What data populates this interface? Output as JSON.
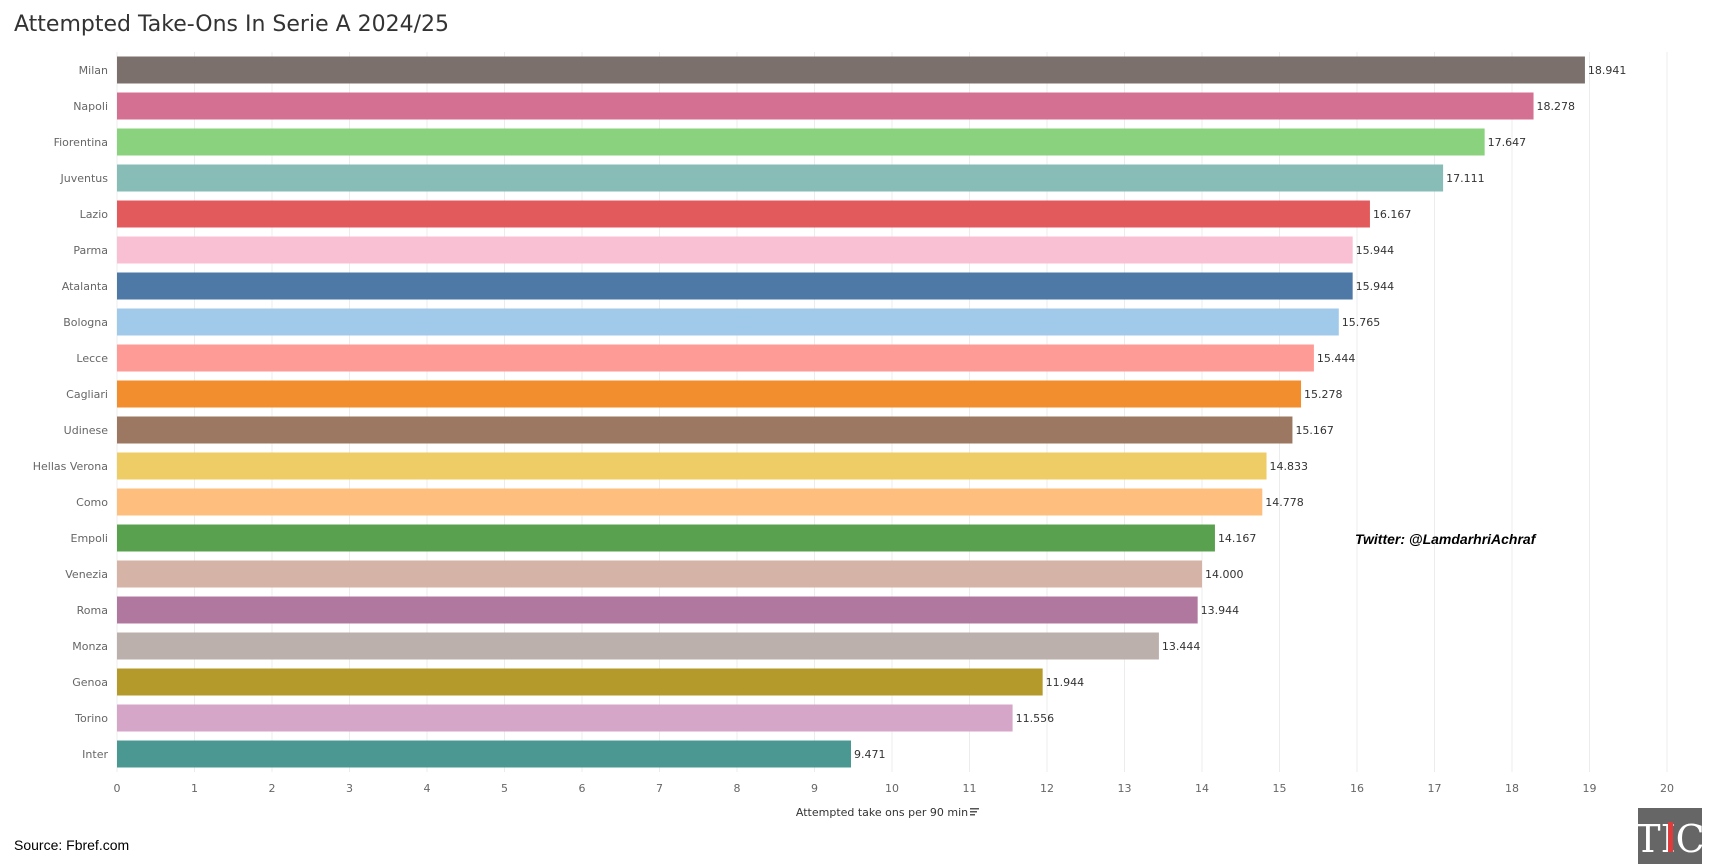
{
  "header": {
    "title": "Attempted Take-Ons In Serie A 2024/25"
  },
  "annotation": {
    "twitter": "Twitter: @LamdarhriAchraf"
  },
  "footer": {
    "source": "Source: Fbref.com",
    "logo_text": "TIC"
  },
  "chart_data": {
    "type": "bar",
    "orientation": "horizontal",
    "title": "Attempted Take-Ons In Serie A 2024/25",
    "xlabel": "Attempted take ons per 90 min",
    "ylabel": "",
    "xlim": [
      0,
      20
    ],
    "xticks": [
      0,
      1,
      2,
      3,
      4,
      5,
      6,
      7,
      8,
      9,
      10,
      11,
      12,
      13,
      14,
      15,
      16,
      17,
      18,
      19,
      20
    ],
    "grid": true,
    "sorted": "descending",
    "categories": [
      "Milan",
      "Napoli",
      "Fiorentina",
      "Juventus",
      "Lazio",
      "Parma",
      "Atalanta",
      "Bologna",
      "Lecce",
      "Cagliari",
      "Udinese",
      "Hellas Verona",
      "Como",
      "Empoli",
      "Venezia",
      "Roma",
      "Monza",
      "Genoa",
      "Torino",
      "Inter"
    ],
    "values": [
      18.941,
      18.278,
      17.647,
      17.111,
      16.167,
      15.944,
      15.944,
      15.765,
      15.444,
      15.278,
      15.167,
      14.833,
      14.778,
      14.167,
      14.0,
      13.944,
      13.444,
      11.944,
      11.556,
      9.471
    ],
    "value_labels": [
      "18.941",
      "18.278",
      "17.647",
      "17.111",
      "16.167",
      "15.944",
      "15.944",
      "15.765",
      "15.444",
      "15.278",
      "15.167",
      "14.833",
      "14.778",
      "14.167",
      "14.000",
      "13.944",
      "13.444",
      "11.944",
      "11.556",
      "9.471"
    ],
    "colors": [
      "#7b706b",
      "#d47193",
      "#8bd27e",
      "#87bdb6",
      "#e25a5c",
      "#f9bfd2",
      "#4e78a6",
      "#a1caea",
      "#ff9b96",
      "#f28e2d",
      "#9c7762",
      "#efcd66",
      "#febf7e",
      "#5aa14f",
      "#d5b3a6",
      "#b0789f",
      "#bbb0ab",
      "#b49a2a",
      "#d6a6c8",
      "#4a9891"
    ]
  }
}
